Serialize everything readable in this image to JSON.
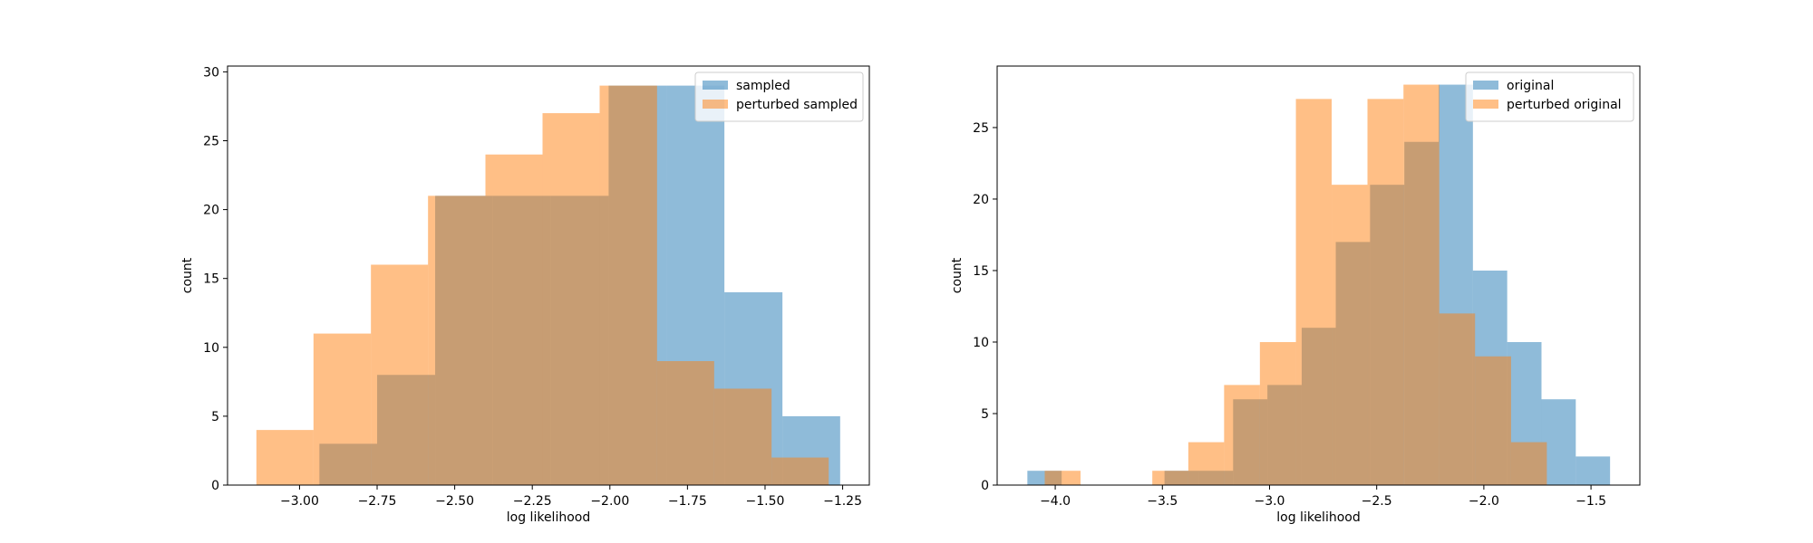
{
  "chart_data": [
    {
      "type": "histogram",
      "xlabel": "log likelihood",
      "ylabel": "count",
      "xlim": [
        -3.232,
        -1.164
      ],
      "ylim": [
        0,
        30.42
      ],
      "xticks": [
        {
          "value": -3.0,
          "label": "−3.00"
        },
        {
          "value": -2.75,
          "label": "−2.75"
        },
        {
          "value": -2.5,
          "label": "−2.50"
        },
        {
          "value": -2.25,
          "label": "−2.25"
        },
        {
          "value": -2.0,
          "label": "−2.00"
        },
        {
          "value": -1.75,
          "label": "−1.75"
        },
        {
          "value": -1.5,
          "label": "−1.50"
        },
        {
          "value": -1.25,
          "label": "−1.25"
        }
      ],
      "yticks": [
        0,
        5,
        10,
        15,
        20,
        25,
        30
      ],
      "legend": "upper right",
      "alpha": 0.5,
      "series": [
        {
          "name": "sampled",
          "color": "#1f77b4",
          "bins": [
            -2.936,
            -2.75,
            -2.563,
            -2.377,
            -2.19,
            -2.004,
            -1.817,
            -1.631,
            -1.444,
            -1.258
          ],
          "values": [
            3,
            8,
            21,
            21,
            21,
            29,
            29,
            14,
            5
          ]
        },
        {
          "name": "perturbed sampled",
          "color": "#ff7f0e",
          "bins": [
            -3.139,
            -2.955,
            -2.77,
            -2.586,
            -2.401,
            -2.217,
            -2.033,
            -1.848,
            -1.664,
            -1.479,
            -1.295
          ],
          "values": [
            4,
            11,
            16,
            21,
            24,
            27,
            29,
            9,
            7,
            2
          ]
        }
      ]
    },
    {
      "type": "histogram",
      "xlabel": "log likelihood",
      "ylabel": "count",
      "xlim": [
        -4.271,
        -1.272
      ],
      "ylim": [
        0,
        29.3
      ],
      "xticks": [
        {
          "value": -4.0,
          "label": "−4.0"
        },
        {
          "value": -3.5,
          "label": "−3.5"
        },
        {
          "value": -3.0,
          "label": "−3.0"
        },
        {
          "value": -2.5,
          "label": "−2.5"
        },
        {
          "value": -2.0,
          "label": "−2.0"
        },
        {
          "value": -1.5,
          "label": "−1.5"
        }
      ],
      "yticks": [
        0,
        5,
        10,
        15,
        20,
        25
      ],
      "legend": "upper right",
      "alpha": 0.5,
      "series": [
        {
          "name": "original",
          "color": "#1f77b4",
          "bins": [
            -4.13,
            -3.97,
            -3.81,
            -3.65,
            -3.49,
            -3.33,
            -3.17,
            -3.01,
            -2.85,
            -2.691,
            -2.531,
            -2.371,
            -2.211,
            -2.051,
            -1.891,
            -1.731,
            -1.571,
            -1.411
          ],
          "values": [
            1,
            0,
            0,
            0,
            1,
            1,
            6,
            7,
            11,
            17,
            21,
            24,
            28,
            15,
            10,
            6,
            2
          ]
        },
        {
          "name": "perturbed original",
          "color": "#ff7f0e",
          "bins": [
            -4.049,
            -3.882,
            -3.714,
            -3.547,
            -3.379,
            -3.212,
            -3.045,
            -2.877,
            -2.71,
            -2.543,
            -2.375,
            -2.208,
            -2.041,
            -1.873,
            -1.706
          ],
          "values": [
            1,
            0,
            0,
            1,
            3,
            7,
            10,
            27,
            21,
            27,
            28,
            12,
            9,
            3
          ]
        }
      ]
    }
  ]
}
